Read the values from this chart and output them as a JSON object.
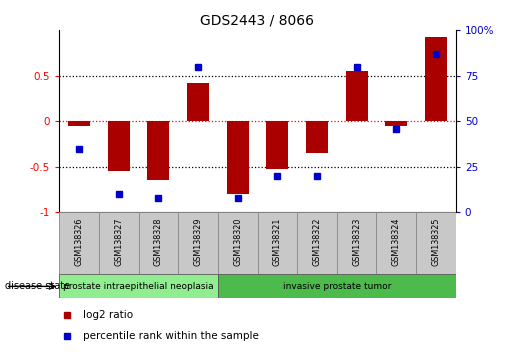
{
  "title": "GDS2443 / 8066",
  "samples": [
    "GSM138326",
    "GSM138327",
    "GSM138328",
    "GSM138329",
    "GSM138320",
    "GSM138321",
    "GSM138322",
    "GSM138323",
    "GSM138324",
    "GSM138325"
  ],
  "log2_ratio": [
    -0.05,
    -0.55,
    -0.65,
    0.42,
    -0.8,
    -0.52,
    -0.35,
    0.55,
    -0.05,
    0.92
  ],
  "percentile_rank": [
    35,
    10,
    8,
    80,
    8,
    20,
    20,
    80,
    46,
    87
  ],
  "disease_groups": [
    {
      "label": "prostate intraepithelial neoplasia",
      "n": 4,
      "color": "#90EE90"
    },
    {
      "label": "invasive prostate tumor",
      "n": 6,
      "color": "#4CBB4C"
    }
  ],
  "bar_color": "#AA0000",
  "dot_color": "#0000CC",
  "ylim": [
    -1.0,
    1.0
  ],
  "yticks_left": [
    -1.0,
    -0.5,
    0.0,
    0.5
  ],
  "ytick_labels_left": [
    "-1",
    "-0.5",
    "0",
    "0.5"
  ],
  "yticks_right_vals": [
    -1.0,
    -0.5,
    0.0,
    0.5,
    1.0
  ],
  "ytick_labels_right": [
    "0",
    "25",
    "50",
    "75",
    "100%"
  ],
  "legend_items": [
    "log2 ratio",
    "percentile rank within the sample"
  ],
  "sample_box_color": "#C8C8C8",
  "background_color": "#ffffff",
  "figwidth": 5.15,
  "figheight": 3.54,
  "dpi": 100
}
